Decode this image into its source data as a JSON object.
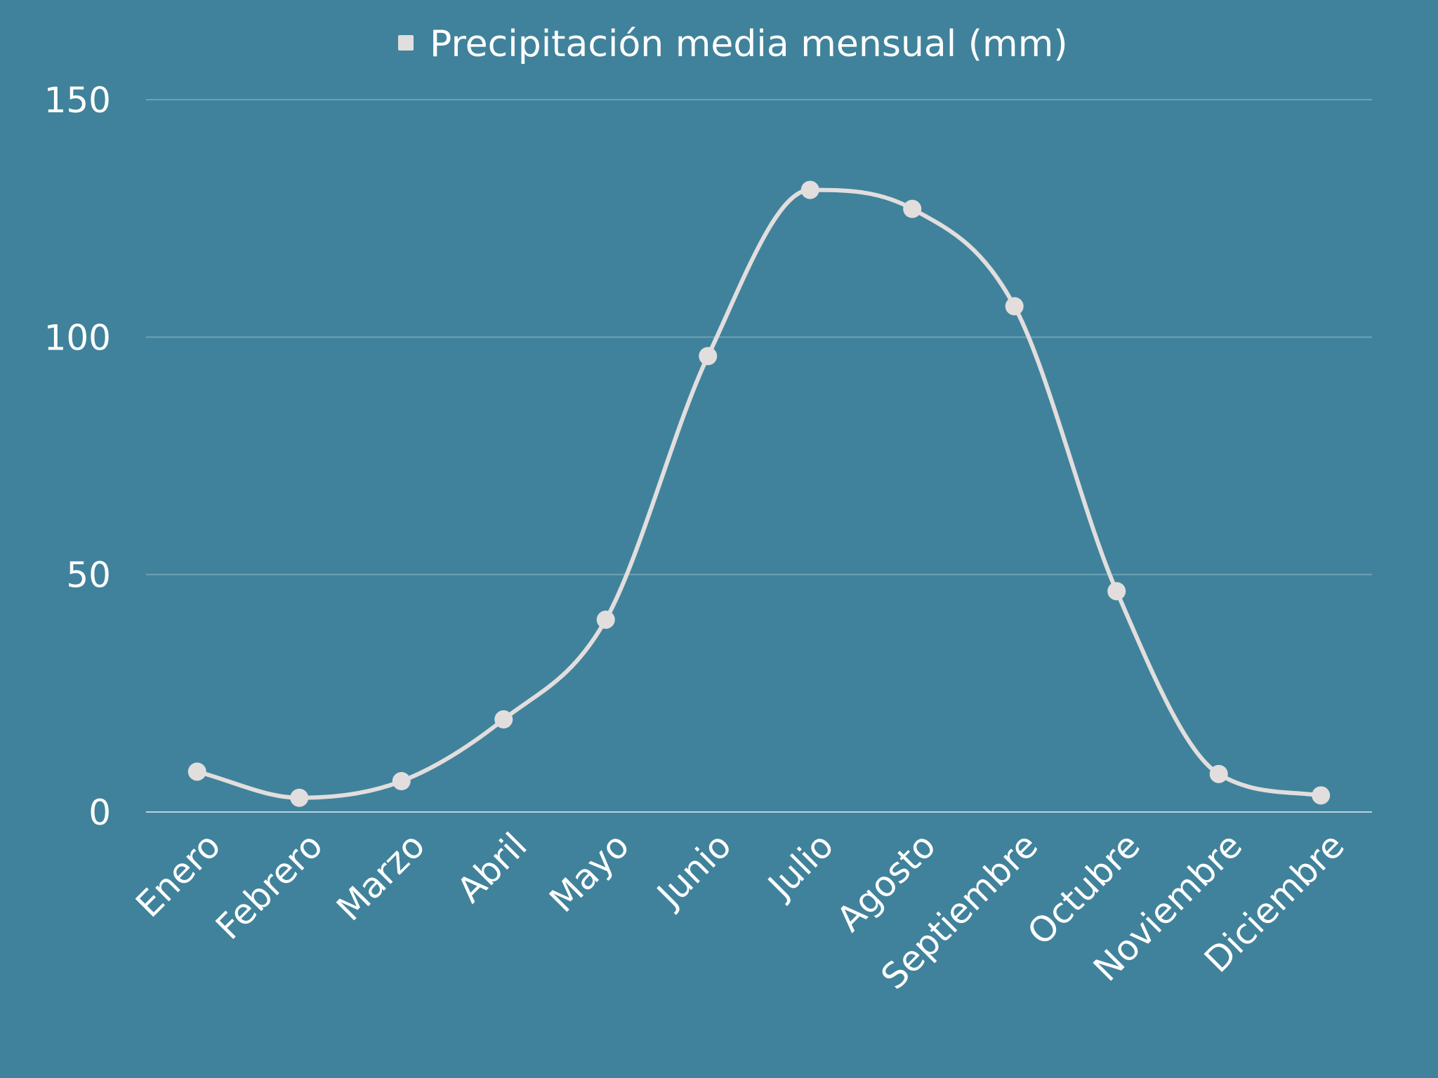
{
  "colors": {
    "background": "#40829b",
    "line": "#e2dede",
    "grid": "#6ea2b7",
    "text": "#ffffff"
  },
  "chart_data": {
    "type": "line",
    "smooth": true,
    "markers": true,
    "legend": "top-center",
    "grid": true,
    "categories": [
      "Enero",
      "Febrero",
      "Marzo",
      "Abril",
      "Mayo",
      "Junio",
      "Julio",
      "Agosto",
      "Septiembre",
      "Octubre",
      "Noviembre",
      "Diciembre"
    ],
    "series": [
      {
        "name": "Precipitación media mensual (mm)",
        "values": [
          8.5,
          3,
          6.5,
          19.5,
          40.5,
          96,
          131,
          127,
          106.5,
          46.5,
          8,
          3.5
        ]
      }
    ],
    "ylim": [
      0,
      150
    ],
    "yticks": [
      0,
      50,
      100,
      150
    ]
  }
}
